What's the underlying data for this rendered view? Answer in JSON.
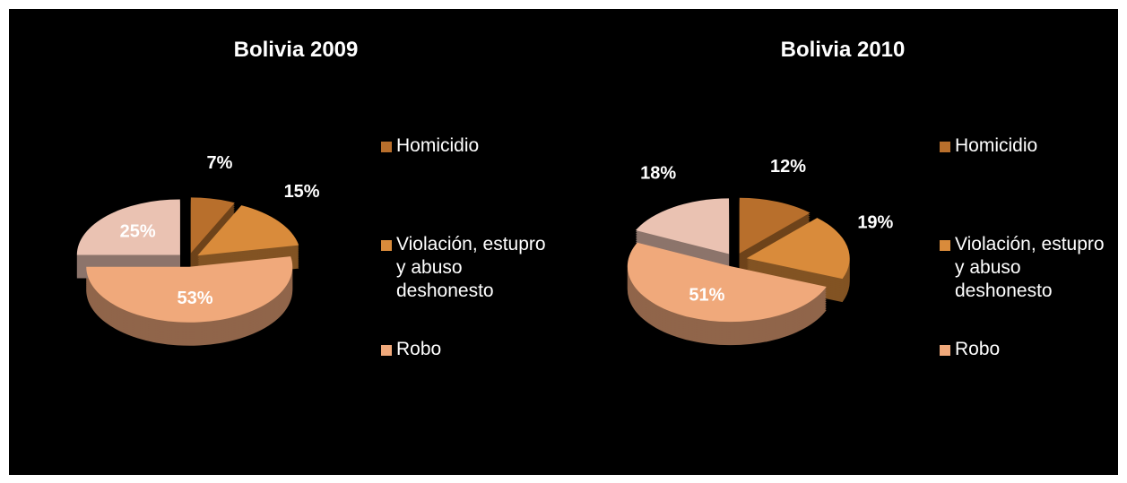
{
  "chart_data": [
    {
      "type": "pie",
      "title": "Bolivia 2009",
      "categories": [
        "Homicidio",
        "Violación, estupro y abuso deshonesto",
        "Robo",
        null
      ],
      "values": [
        7,
        15,
        53,
        25
      ],
      "value_labels": [
        "7%",
        "15%",
        "53%",
        "25%"
      ],
      "colors": [
        "#b86f2c",
        "#d98b3b",
        "#f0a97b",
        "#eac2b2"
      ]
    },
    {
      "type": "pie",
      "title": "Bolivia 2010",
      "categories": [
        "Homicidio",
        "Violación, estupro y abuso deshonesto",
        "Robo",
        null
      ],
      "values": [
        12,
        19,
        51,
        18
      ],
      "value_labels": [
        "12%",
        "19%",
        "51%",
        "18%"
      ],
      "colors": [
        "#b86f2c",
        "#d98b3b",
        "#f0a97b",
        "#eac2b2"
      ]
    }
  ]
}
